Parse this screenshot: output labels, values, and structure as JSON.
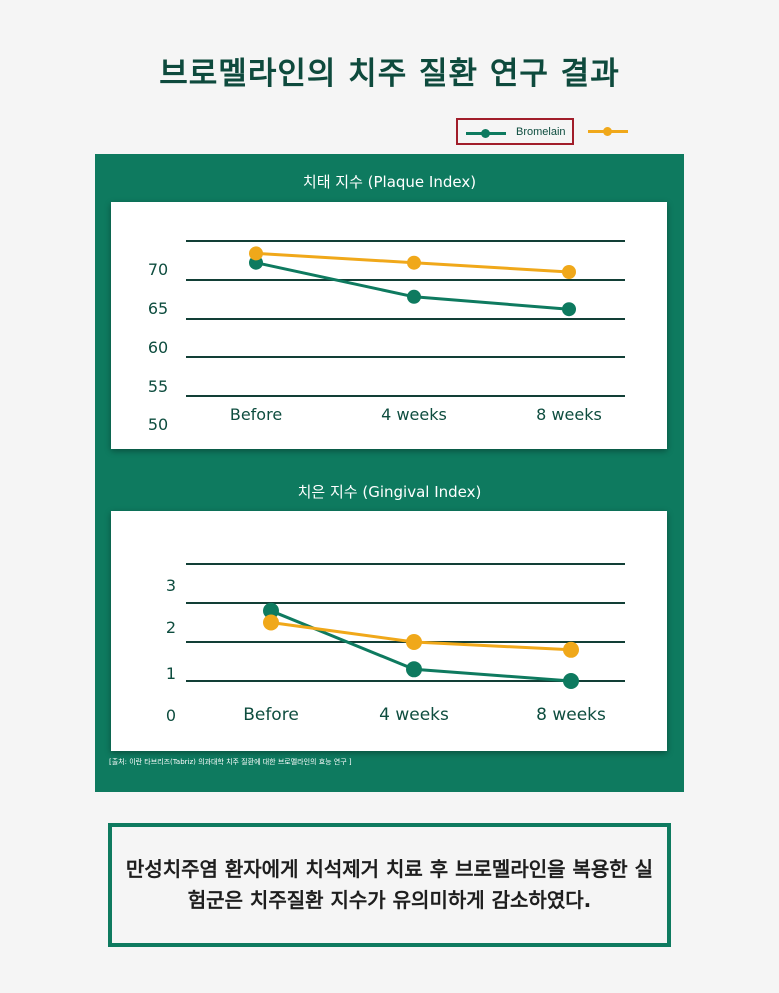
{
  "title": "브로멜라인의 치주 질환 연구 결과",
  "legend": {
    "series1_label": "Bromelain",
    "series1_color": "#0e7a5f",
    "series2_color": "#f0a81a"
  },
  "source": "[출처: 이란 타브리즈(Tabriz) 의과대학 치주 질환에 대한 브로멜라인의 효능 연구 ]",
  "conclusion": "만성치주염 환자에게 치석제거 치료 후 브로멜라인을 복용한 실험군은 치주질환 지수가 유의미하게 감소하였다.",
  "chart_data": [
    {
      "type": "line",
      "title": "치태 지수 (Plaque Index)",
      "categories": [
        "Before",
        "4 weeks",
        "8 weeks"
      ],
      "yticks": [
        "70",
        "65",
        "60",
        "55",
        "50"
      ],
      "ylim": [
        50,
        75
      ],
      "grid": true,
      "series": [
        {
          "name": "Bromelain",
          "color": "#0e7a5f",
          "values": [
            71.5,
            66,
            64
          ]
        },
        {
          "color": "#f0a81a",
          "values": [
            73,
            71.5,
            70
          ]
        }
      ]
    },
    {
      "type": "line",
      "title": "치은 지수 (Gingival Index)",
      "categories": [
        "Before",
        "4 weeks",
        "8 weeks"
      ],
      "yticks": [
        "3",
        "2",
        "1",
        "0"
      ],
      "ylim": [
        0,
        4
      ],
      "grid": true,
      "series": [
        {
          "name": "Bromelain",
          "color": "#0e7a5f",
          "values": [
            2.8,
            1.3,
            1.0
          ]
        },
        {
          "color": "#f0a81a",
          "values": [
            2.5,
            2.0,
            1.8
          ]
        }
      ]
    }
  ]
}
